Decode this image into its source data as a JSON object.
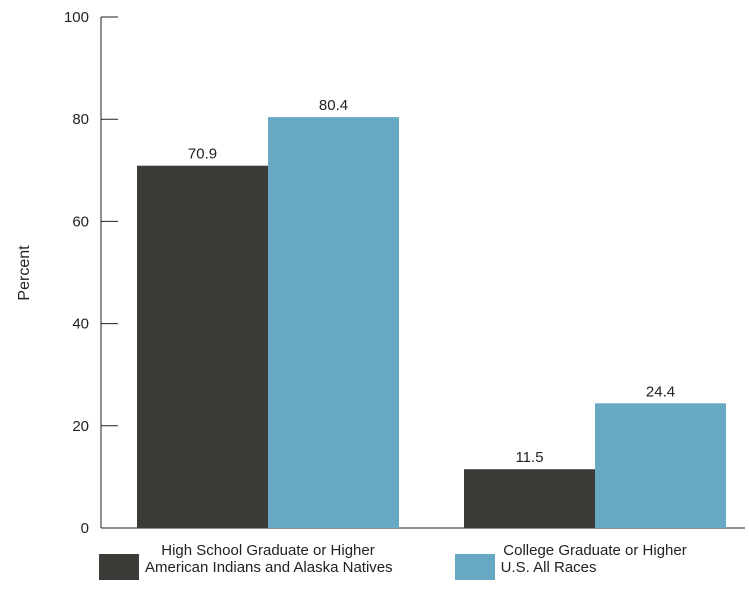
{
  "chart_data": {
    "type": "bar",
    "title": "",
    "xlabel": "",
    "ylabel": "Percent",
    "ylim": [
      0,
      100
    ],
    "yticks": [
      0,
      20,
      40,
      60,
      80,
      100
    ],
    "categories": [
      "High School Graduate or Higher",
      "College Graduate or Higher"
    ],
    "series": [
      {
        "name": "American Indians and Alaska Natives",
        "values": [
          70.9,
          11.5
        ],
        "labels": [
          "70.9",
          "11.5"
        ],
        "color": "#3b3b37"
      },
      {
        "name": "U.S. All Races",
        "values": [
          80.4,
          24.4
        ],
        "labels": [
          "80.4",
          "24.4"
        ],
        "color": "#67a9c3"
      }
    ],
    "legend_position": "bottom",
    "grid": false
  }
}
